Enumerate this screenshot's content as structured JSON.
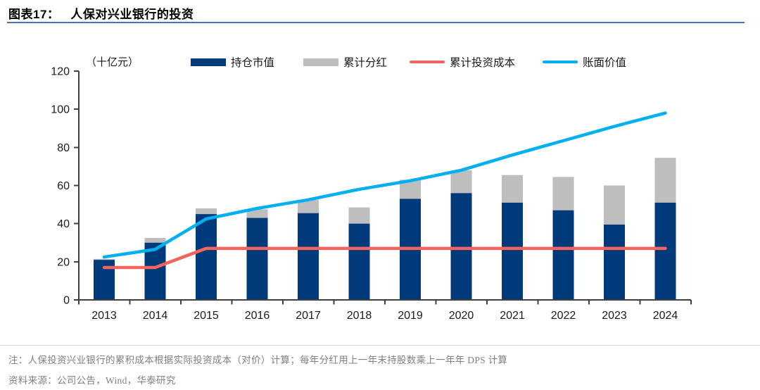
{
  "header": {
    "title_prefix": "图表17：",
    "title": "人保对兴业银行的投资",
    "rule_color": "#4472c4"
  },
  "chart_data": {
    "type": "combo-stacked-bar-line",
    "unit_label": "（十亿元）",
    "categories": [
      "2013",
      "2014",
      "2015",
      "2016",
      "2017",
      "2018",
      "2019",
      "2020",
      "2021",
      "2022",
      "2023",
      "2024"
    ],
    "series": [
      {
        "name": "持仓市值",
        "type": "bar",
        "stack": "base",
        "color": "#003a7a",
        "values": [
          21,
          30,
          45,
          43,
          45.5,
          40,
          53,
          56,
          51,
          47,
          39.5,
          51
        ]
      },
      {
        "name": "累计分红",
        "type": "bar",
        "stack": "top",
        "color": "#bebebe",
        "values": [
          0.5,
          2.5,
          3,
          4.5,
          7,
          8.5,
          10,
          12,
          14.5,
          17.5,
          20.5,
          23.5
        ]
      },
      {
        "name": "累计投资成本",
        "type": "line",
        "color": "#f4645e",
        "values": [
          17,
          17,
          27,
          27,
          27,
          27,
          27,
          27,
          27,
          27,
          27,
          27
        ]
      },
      {
        "name": "账面价值",
        "type": "line",
        "color": "#00b0f0",
        "values": [
          22.5,
          26.5,
          42.5,
          48,
          52.5,
          58,
          62.5,
          68,
          76,
          83.5,
          91,
          98
        ]
      }
    ],
    "ylim": [
      0,
      120
    ],
    "ytick_step": 20,
    "grid": false,
    "legend_position": "top",
    "axis_color": "#404040",
    "tick_label_color": "#1a1a1a"
  },
  "footnote": {
    "note": "注：人保投资兴业银行的累积成本根据实际投资成本（对价）计算；每年分红用上一年末持股数乘上一年年 DPS 计算",
    "source": "资料来源：公司公告，Wind，华泰研究"
  }
}
